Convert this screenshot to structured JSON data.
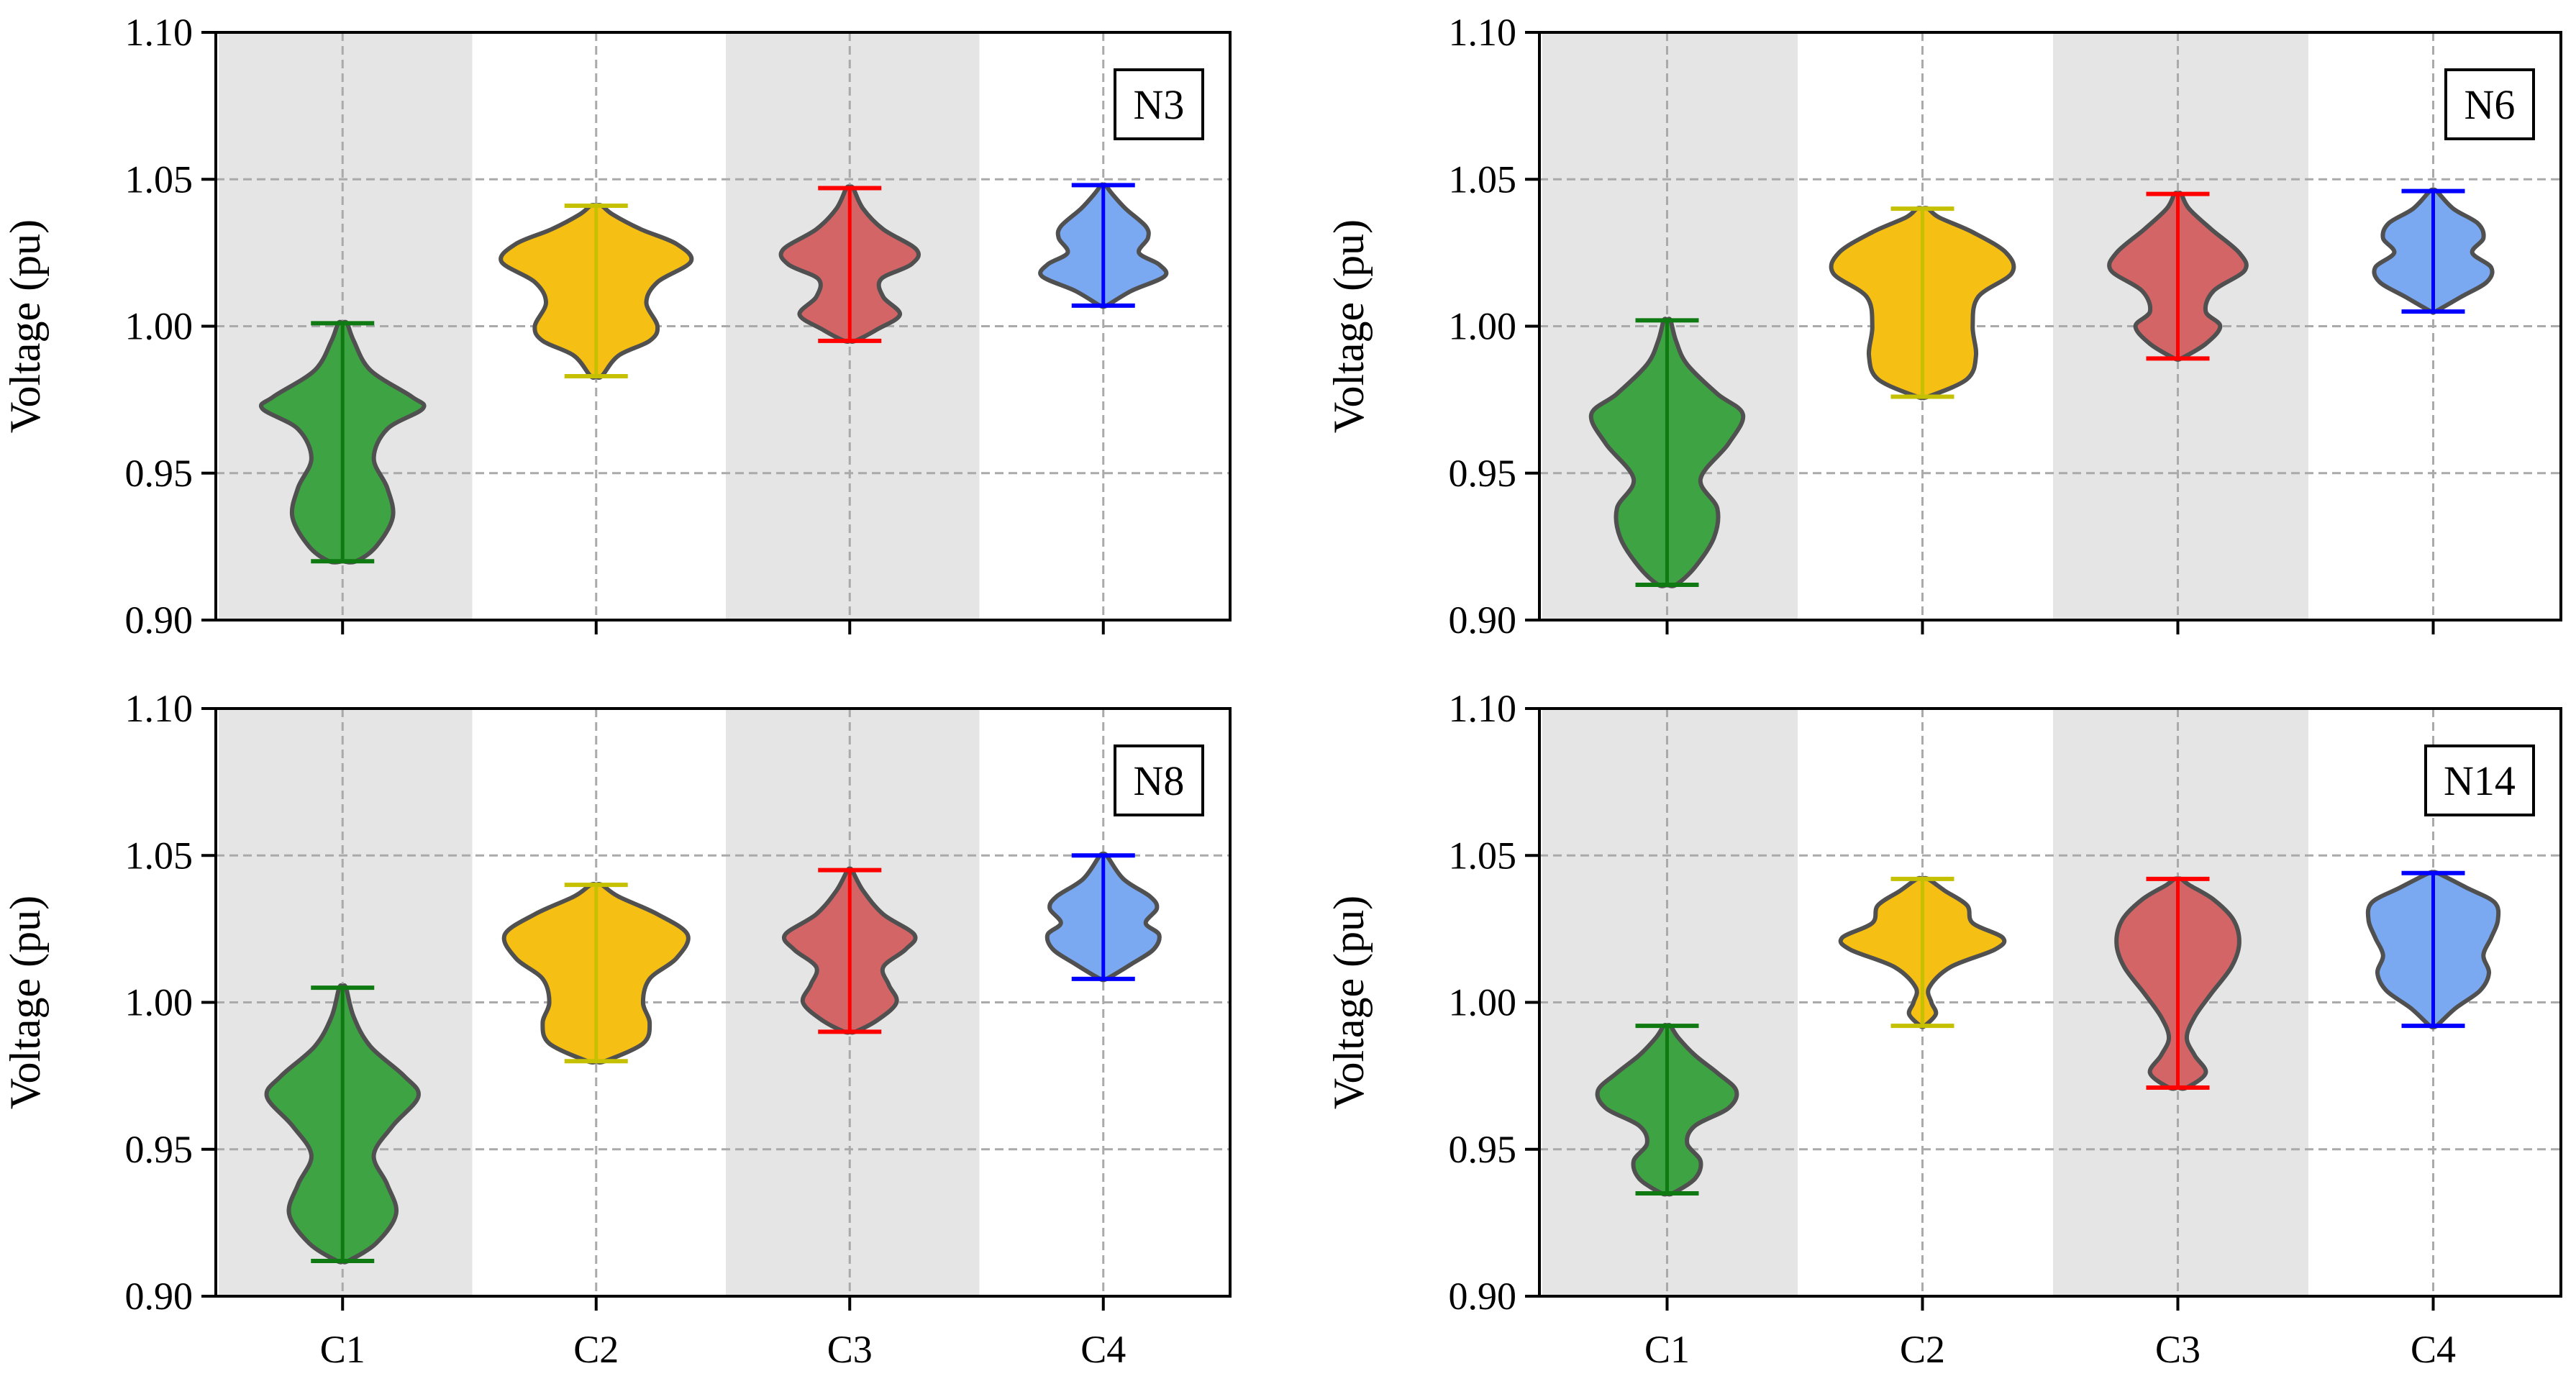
{
  "chart_data": [
    {
      "type": "violin",
      "label": "N3",
      "ylabel": "Voltage (pu)",
      "ylim": [
        0.9,
        1.1
      ],
      "yticks": [
        "0.90",
        "0.95",
        "1.00",
        "1.05",
        "1.10"
      ],
      "categories": [
        "C1",
        "C2",
        "C3",
        "C4"
      ],
      "show_xticklabels": false,
      "series": [
        {
          "name": "C1",
          "fill": "#3ea343",
          "line": "#0f7a12",
          "min": 0.92,
          "max": 1.001,
          "profile": [
            [
              0.92,
              0.12
            ],
            [
              0.925,
              0.3
            ],
            [
              0.935,
              0.45
            ],
            [
              0.945,
              0.4
            ],
            [
              0.955,
              0.28
            ],
            [
              0.965,
              0.4
            ],
            [
              0.972,
              0.72
            ],
            [
              0.976,
              0.62
            ],
            [
              0.985,
              0.25
            ],
            [
              0.995,
              0.1
            ],
            [
              1.001,
              0.04
            ]
          ]
        },
        {
          "name": "C2",
          "fill": "#f6bf14",
          "line": "#c5c000",
          "min": 0.983,
          "max": 1.041,
          "profile": [
            [
              0.983,
              0.05
            ],
            [
              0.99,
              0.2
            ],
            [
              0.995,
              0.48
            ],
            [
              1.0,
              0.55
            ],
            [
              1.008,
              0.45
            ],
            [
              1.015,
              0.55
            ],
            [
              1.022,
              0.85
            ],
            [
              1.028,
              0.72
            ],
            [
              1.033,
              0.4
            ],
            [
              1.038,
              0.15
            ],
            [
              1.041,
              0.05
            ]
          ]
        },
        {
          "name": "C3",
          "fill": "#d36567",
          "line": "#ff0000",
          "min": 0.995,
          "max": 1.047,
          "profile": [
            [
              0.995,
              0.05
            ],
            [
              0.999,
              0.25
            ],
            [
              1.004,
              0.45
            ],
            [
              1.01,
              0.3
            ],
            [
              1.016,
              0.28
            ],
            [
              1.021,
              0.55
            ],
            [
              1.026,
              0.6
            ],
            [
              1.033,
              0.3
            ],
            [
              1.04,
              0.12
            ],
            [
              1.047,
              0.03
            ]
          ]
        },
        {
          "name": "C4",
          "fill": "#7aa9f2",
          "line": "#0000ff",
          "min": 1.007,
          "max": 1.048,
          "profile": [
            [
              1.007,
              0.03
            ],
            [
              1.012,
              0.25
            ],
            [
              1.017,
              0.55
            ],
            [
              1.021,
              0.5
            ],
            [
              1.025,
              0.32
            ],
            [
              1.03,
              0.4
            ],
            [
              1.034,
              0.38
            ],
            [
              1.04,
              0.2
            ],
            [
              1.045,
              0.08
            ],
            [
              1.048,
              0.02
            ]
          ]
        }
      ]
    },
    {
      "type": "violin",
      "label": "N6",
      "ylabel": "Voltage (pu)",
      "ylim": [
        0.9,
        1.1
      ],
      "yticks": [
        "0.90",
        "0.95",
        "1.00",
        "1.05",
        "1.10"
      ],
      "categories": [
        "C1",
        "C2",
        "C3",
        "C4"
      ],
      "show_xticklabels": false,
      "series": [
        {
          "name": "C1",
          "fill": "#3ea343",
          "line": "#0f7a12",
          "min": 0.912,
          "max": 1.002,
          "profile": [
            [
              0.912,
              0.08
            ],
            [
              0.918,
              0.25
            ],
            [
              0.928,
              0.42
            ],
            [
              0.938,
              0.45
            ],
            [
              0.948,
              0.3
            ],
            [
              0.96,
              0.55
            ],
            [
              0.97,
              0.68
            ],
            [
              0.977,
              0.45
            ],
            [
              0.987,
              0.18
            ],
            [
              0.995,
              0.08
            ],
            [
              1.002,
              0.03
            ]
          ]
        },
        {
          "name": "C2",
          "fill": "#f6bf14",
          "line": "#c5c000",
          "min": 0.976,
          "max": 1.04,
          "profile": [
            [
              0.976,
              0.05
            ],
            [
              0.982,
              0.4
            ],
            [
              0.99,
              0.48
            ],
            [
              1.0,
              0.45
            ],
            [
              1.01,
              0.5
            ],
            [
              1.018,
              0.8
            ],
            [
              1.025,
              0.75
            ],
            [
              1.032,
              0.45
            ],
            [
              1.037,
              0.15
            ],
            [
              1.04,
              0.05
            ]
          ]
        },
        {
          "name": "C3",
          "fill": "#d36567",
          "line": "#ff0000",
          "min": 0.989,
          "max": 1.045,
          "profile": [
            [
              0.989,
              0.03
            ],
            [
              0.994,
              0.25
            ],
            [
              1.0,
              0.38
            ],
            [
              1.005,
              0.25
            ],
            [
              1.012,
              0.32
            ],
            [
              1.019,
              0.6
            ],
            [
              1.025,
              0.55
            ],
            [
              1.033,
              0.3
            ],
            [
              1.04,
              0.1
            ],
            [
              1.045,
              0.03
            ]
          ]
        },
        {
          "name": "C4",
          "fill": "#7aa9f2",
          "line": "#0000ff",
          "min": 1.005,
          "max": 1.046,
          "profile": [
            [
              1.005,
              0.02
            ],
            [
              1.01,
              0.25
            ],
            [
              1.015,
              0.48
            ],
            [
              1.02,
              0.52
            ],
            [
              1.025,
              0.35
            ],
            [
              1.03,
              0.45
            ],
            [
              1.035,
              0.4
            ],
            [
              1.04,
              0.18
            ],
            [
              1.046,
              0.03
            ]
          ]
        }
      ]
    },
    {
      "type": "violin",
      "label": "N8",
      "ylabel": "Voltage (pu)",
      "ylim": [
        0.9,
        1.1
      ],
      "yticks": [
        "0.90",
        "0.95",
        "1.00",
        "1.05",
        "1.10"
      ],
      "categories": [
        "C1",
        "C2",
        "C3",
        "C4"
      ],
      "show_xticklabels": true,
      "series": [
        {
          "name": "C1",
          "fill": "#3ea343",
          "line": "#0f7a12",
          "min": 0.912,
          "max": 1.005,
          "profile": [
            [
              0.912,
              0.05
            ],
            [
              0.918,
              0.3
            ],
            [
              0.928,
              0.48
            ],
            [
              0.938,
              0.4
            ],
            [
              0.948,
              0.28
            ],
            [
              0.958,
              0.45
            ],
            [
              0.968,
              0.68
            ],
            [
              0.975,
              0.55
            ],
            [
              0.985,
              0.25
            ],
            [
              0.995,
              0.1
            ],
            [
              1.005,
              0.03
            ]
          ]
        },
        {
          "name": "C2",
          "fill": "#f6bf14",
          "line": "#c5c000",
          "min": 0.98,
          "max": 1.04,
          "profile": [
            [
              0.98,
              0.08
            ],
            [
              0.986,
              0.42
            ],
            [
              0.993,
              0.48
            ],
            [
              1.0,
              0.42
            ],
            [
              1.008,
              0.48
            ],
            [
              1.015,
              0.72
            ],
            [
              1.023,
              0.82
            ],
            [
              1.03,
              0.55
            ],
            [
              1.036,
              0.2
            ],
            [
              1.04,
              0.05
            ]
          ]
        },
        {
          "name": "C3",
          "fill": "#d36567",
          "line": "#ff0000",
          "min": 0.99,
          "max": 1.045,
          "profile": [
            [
              0.99,
              0.05
            ],
            [
              0.994,
              0.25
            ],
            [
              1.0,
              0.42
            ],
            [
              1.006,
              0.35
            ],
            [
              1.012,
              0.3
            ],
            [
              1.018,
              0.5
            ],
            [
              1.023,
              0.58
            ],
            [
              1.03,
              0.3
            ],
            [
              1.038,
              0.12
            ],
            [
              1.045,
              0.02
            ]
          ]
        },
        {
          "name": "C4",
          "fill": "#7aa9f2",
          "line": "#0000ff",
          "min": 1.008,
          "max": 1.05,
          "profile": [
            [
              1.008,
              0.03
            ],
            [
              1.013,
              0.25
            ],
            [
              1.018,
              0.45
            ],
            [
              1.023,
              0.5
            ],
            [
              1.027,
              0.38
            ],
            [
              1.032,
              0.48
            ],
            [
              1.036,
              0.42
            ],
            [
              1.042,
              0.18
            ],
            [
              1.05,
              0.03
            ]
          ]
        }
      ]
    },
    {
      "type": "violin",
      "label": "N14",
      "ylabel": "Voltage (pu)",
      "ylim": [
        0.9,
        1.1
      ],
      "yticks": [
        "0.90",
        "0.95",
        "1.00",
        "1.05",
        "1.10"
      ],
      "categories": [
        "C1",
        "C2",
        "C3",
        "C4"
      ],
      "show_xticklabels": true,
      "series": [
        {
          "name": "C1",
          "fill": "#3ea343",
          "line": "#0f7a12",
          "min": 0.935,
          "max": 0.992,
          "profile": [
            [
              0.935,
              0.05
            ],
            [
              0.94,
              0.25
            ],
            [
              0.946,
              0.3
            ],
            [
              0.952,
              0.18
            ],
            [
              0.958,
              0.25
            ],
            [
              0.964,
              0.55
            ],
            [
              0.97,
              0.62
            ],
            [
              0.976,
              0.45
            ],
            [
              0.982,
              0.25
            ],
            [
              0.988,
              0.1
            ],
            [
              0.992,
              0.03
            ]
          ]
        },
        {
          "name": "C2",
          "fill": "#f6bf14",
          "line": "#c5c000",
          "min": 0.992,
          "max": 1.042,
          "profile": [
            [
              0.992,
              0.02
            ],
            [
              0.996,
              0.12
            ],
            [
              1.0,
              0.08
            ],
            [
              1.005,
              0.06
            ],
            [
              1.012,
              0.25
            ],
            [
              1.018,
              0.65
            ],
            [
              1.022,
              0.72
            ],
            [
              1.027,
              0.45
            ],
            [
              1.033,
              0.4
            ],
            [
              1.038,
              0.2
            ],
            [
              1.042,
              0.05
            ]
          ]
        },
        {
          "name": "C3",
          "fill": "#d36567",
          "line": "#ff0000",
          "min": 0.971,
          "max": 1.042,
          "profile": [
            [
              0.971,
              0.08
            ],
            [
              0.976,
              0.25
            ],
            [
              0.982,
              0.15
            ],
            [
              0.988,
              0.08
            ],
            [
              0.995,
              0.15
            ],
            [
              1.003,
              0.3
            ],
            [
              1.012,
              0.48
            ],
            [
              1.02,
              0.55
            ],
            [
              1.028,
              0.5
            ],
            [
              1.035,
              0.32
            ],
            [
              1.04,
              0.1
            ],
            [
              1.042,
              0.03
            ]
          ]
        },
        {
          "name": "C4",
          "fill": "#7aa9f2",
          "line": "#0000ff",
          "min": 0.992,
          "max": 1.044,
          "profile": [
            [
              0.992,
              0.03
            ],
            [
              0.998,
              0.2
            ],
            [
              1.004,
              0.42
            ],
            [
              1.01,
              0.5
            ],
            [
              1.016,
              0.45
            ],
            [
              1.022,
              0.52
            ],
            [
              1.028,
              0.58
            ],
            [
              1.034,
              0.55
            ],
            [
              1.039,
              0.3
            ],
            [
              1.044,
              0.04
            ]
          ]
        }
      ]
    }
  ]
}
